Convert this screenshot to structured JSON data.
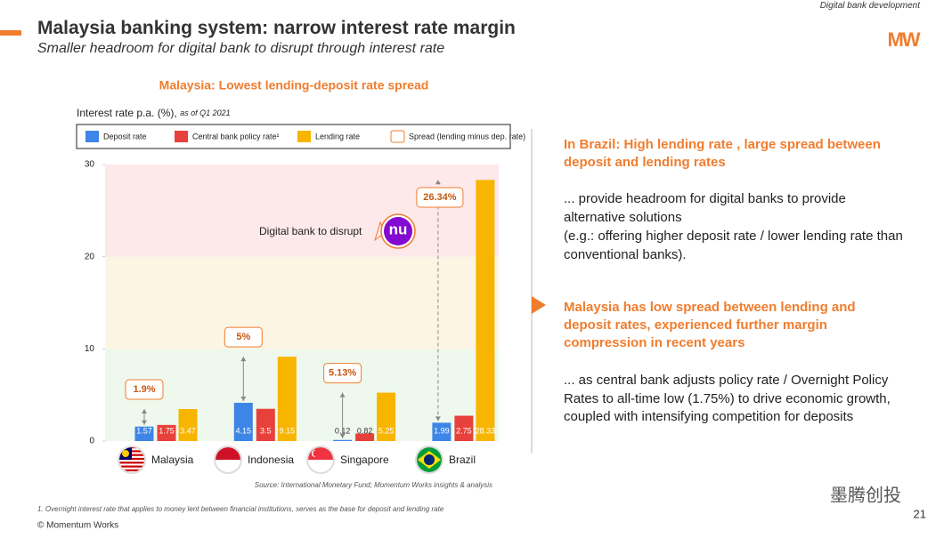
{
  "header_tag": "Digital bank development",
  "title": "Malaysia banking system: narrow interest rate margin",
  "subtitle": "Smaller headroom for digital bank to disrupt through interest rate",
  "logo": "MW",
  "chart_data": {
    "type": "bar",
    "title": "Malaysia: Lowest lending-deposit rate spread",
    "y_label": "Interest rate p.a. (%),",
    "y_label_note": "as of Q1 2021",
    "categories": [
      "Malaysia",
      "Indonesia",
      "Singapore",
      "Brazil"
    ],
    "series": [
      {
        "name": "Deposit rate",
        "color": "#3d85e6",
        "values": [
          1.57,
          4.15,
          0.12,
          1.99
        ]
      },
      {
        "name": "Central bank policy rate¹",
        "color": "#e8403a",
        "values": [
          1.75,
          3.5,
          0.82,
          2.75
        ]
      },
      {
        "name": "Lending rate",
        "color": "#f7b500",
        "values": [
          3.47,
          9.15,
          5.25,
          28.33
        ]
      }
    ],
    "spread": {
      "name": "Spread (lending minus dep. rate)",
      "color": "#f07d2e",
      "values": [
        1.9,
        5,
        5.13,
        26.34
      ],
      "value_labels": [
        "1.9%",
        "5%",
        "5.13%",
        "26.34%"
      ]
    },
    "ylim": [
      0,
      30
    ],
    "yticks": [
      0,
      10,
      20,
      30
    ],
    "background_bands": [
      "#eef8ec",
      "#fdf5e4",
      "#fde8ea"
    ],
    "annotation": "Digital bank to disrupt",
    "annotation_logo": "nu",
    "source": "Source: International Monetary Fund; Momentum Works insights & analysis"
  },
  "panel": {
    "heading_1": "In Brazil: High lending rate , large spread between deposit and lending rates",
    "body_1a": "... provide headroom for digital banks to provide alternative solutions",
    "body_1b": "(e.g.: offering higher deposit rate / lower lending rate than conventional banks).",
    "heading_2": "Malaysia has low spread between lending and deposit rates, experienced further margin compression in recent years",
    "body_2": "... as central bank adjusts policy rate / Overnight Policy Rates to all-time low (1.75%) to drive economic growth, coupled with intensifying competition for deposits"
  },
  "footnote": "1.  Overnight interest rate that applies to money lent between financial institutions, serves as the base for deposit and lending rate",
  "copyright": "© Momentum Works",
  "watermark": "墨腾创投",
  "page_number": "21"
}
